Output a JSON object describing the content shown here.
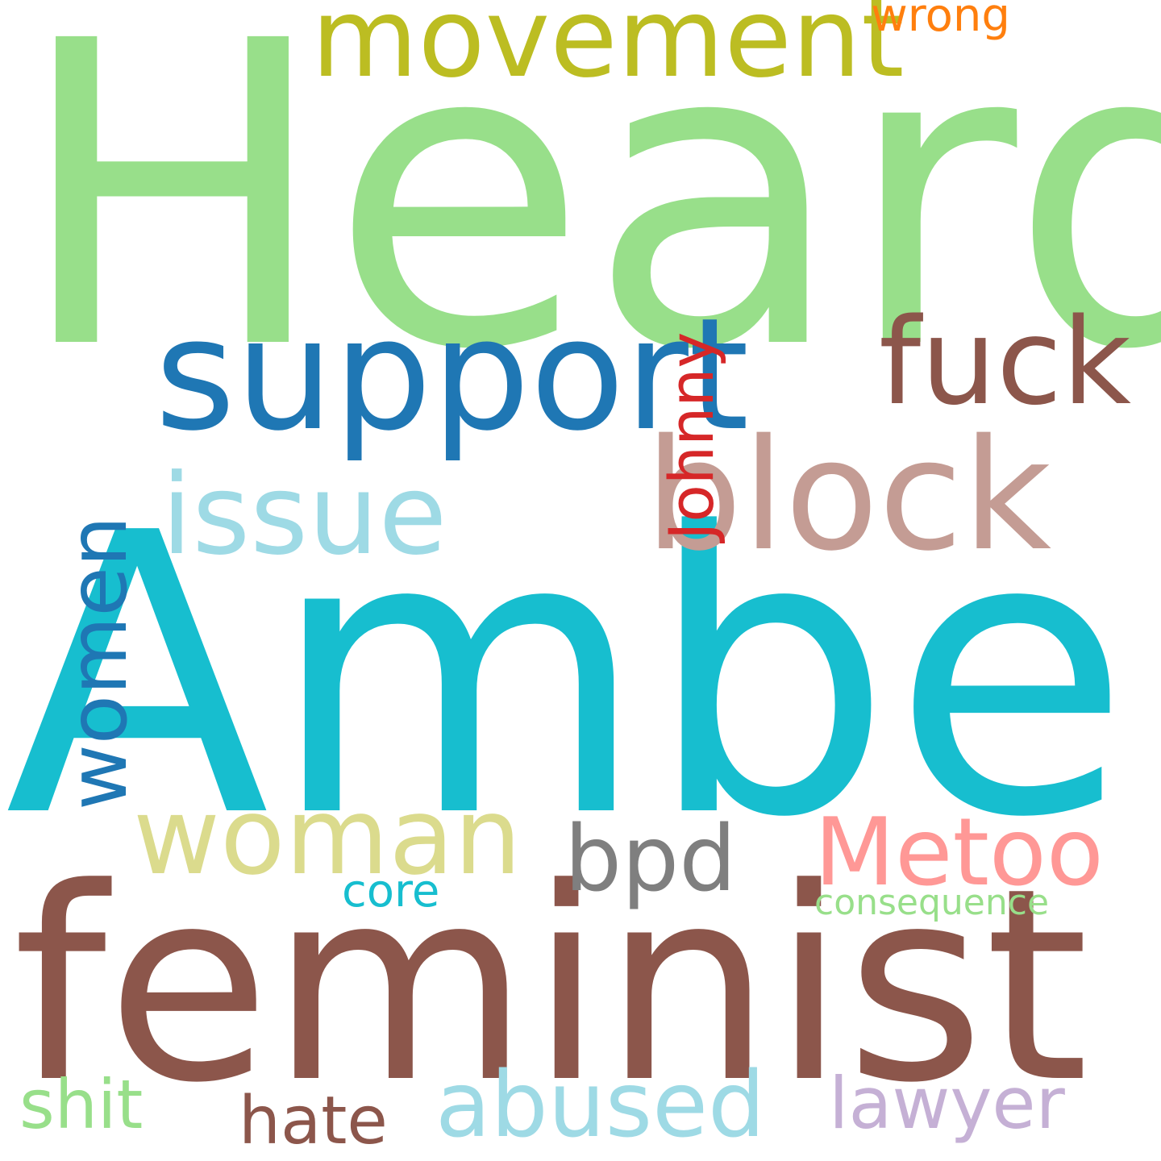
{
  "words": {
    "heard": {
      "text": "Heard",
      "color": "#98df8a"
    },
    "amber": {
      "text": "Amber",
      "color": "#17becf"
    },
    "feminist": {
      "text": "feminist",
      "color": "#8c564b"
    },
    "support": {
      "text": "support",
      "color": "#1f77b4"
    },
    "block": {
      "text": "block",
      "color": "#c49c94"
    },
    "movement": {
      "text": "movement",
      "color": "#bcbd22"
    },
    "fuck": {
      "text": "fuck",
      "color": "#8c564b"
    },
    "issue": {
      "text": "issue",
      "color": "#9edae5"
    },
    "woman": {
      "text": "woman",
      "color": "#dbdb8d"
    },
    "metoo": {
      "text": "Metoo",
      "color": "#ff9896"
    },
    "bpd": {
      "text": "bpd",
      "color": "#7f7f7f"
    },
    "abused": {
      "text": "abused",
      "color": "#9edae5"
    },
    "lawyer": {
      "text": "lawyer",
      "color": "#c5b0d5"
    },
    "shit": {
      "text": "shit",
      "color": "#98df8a"
    },
    "hate": {
      "text": "hate",
      "color": "#8c564b"
    },
    "core": {
      "text": "core",
      "color": "#17becf"
    },
    "consequence": {
      "text": "consequence",
      "color": "#98df8a"
    },
    "wrong": {
      "text": "wrong",
      "color": "#ff7f0e"
    },
    "women": {
      "text": "women",
      "color": "#1f77b4"
    },
    "johnny": {
      "text": "Johnny",
      "color": "#d62728"
    }
  }
}
